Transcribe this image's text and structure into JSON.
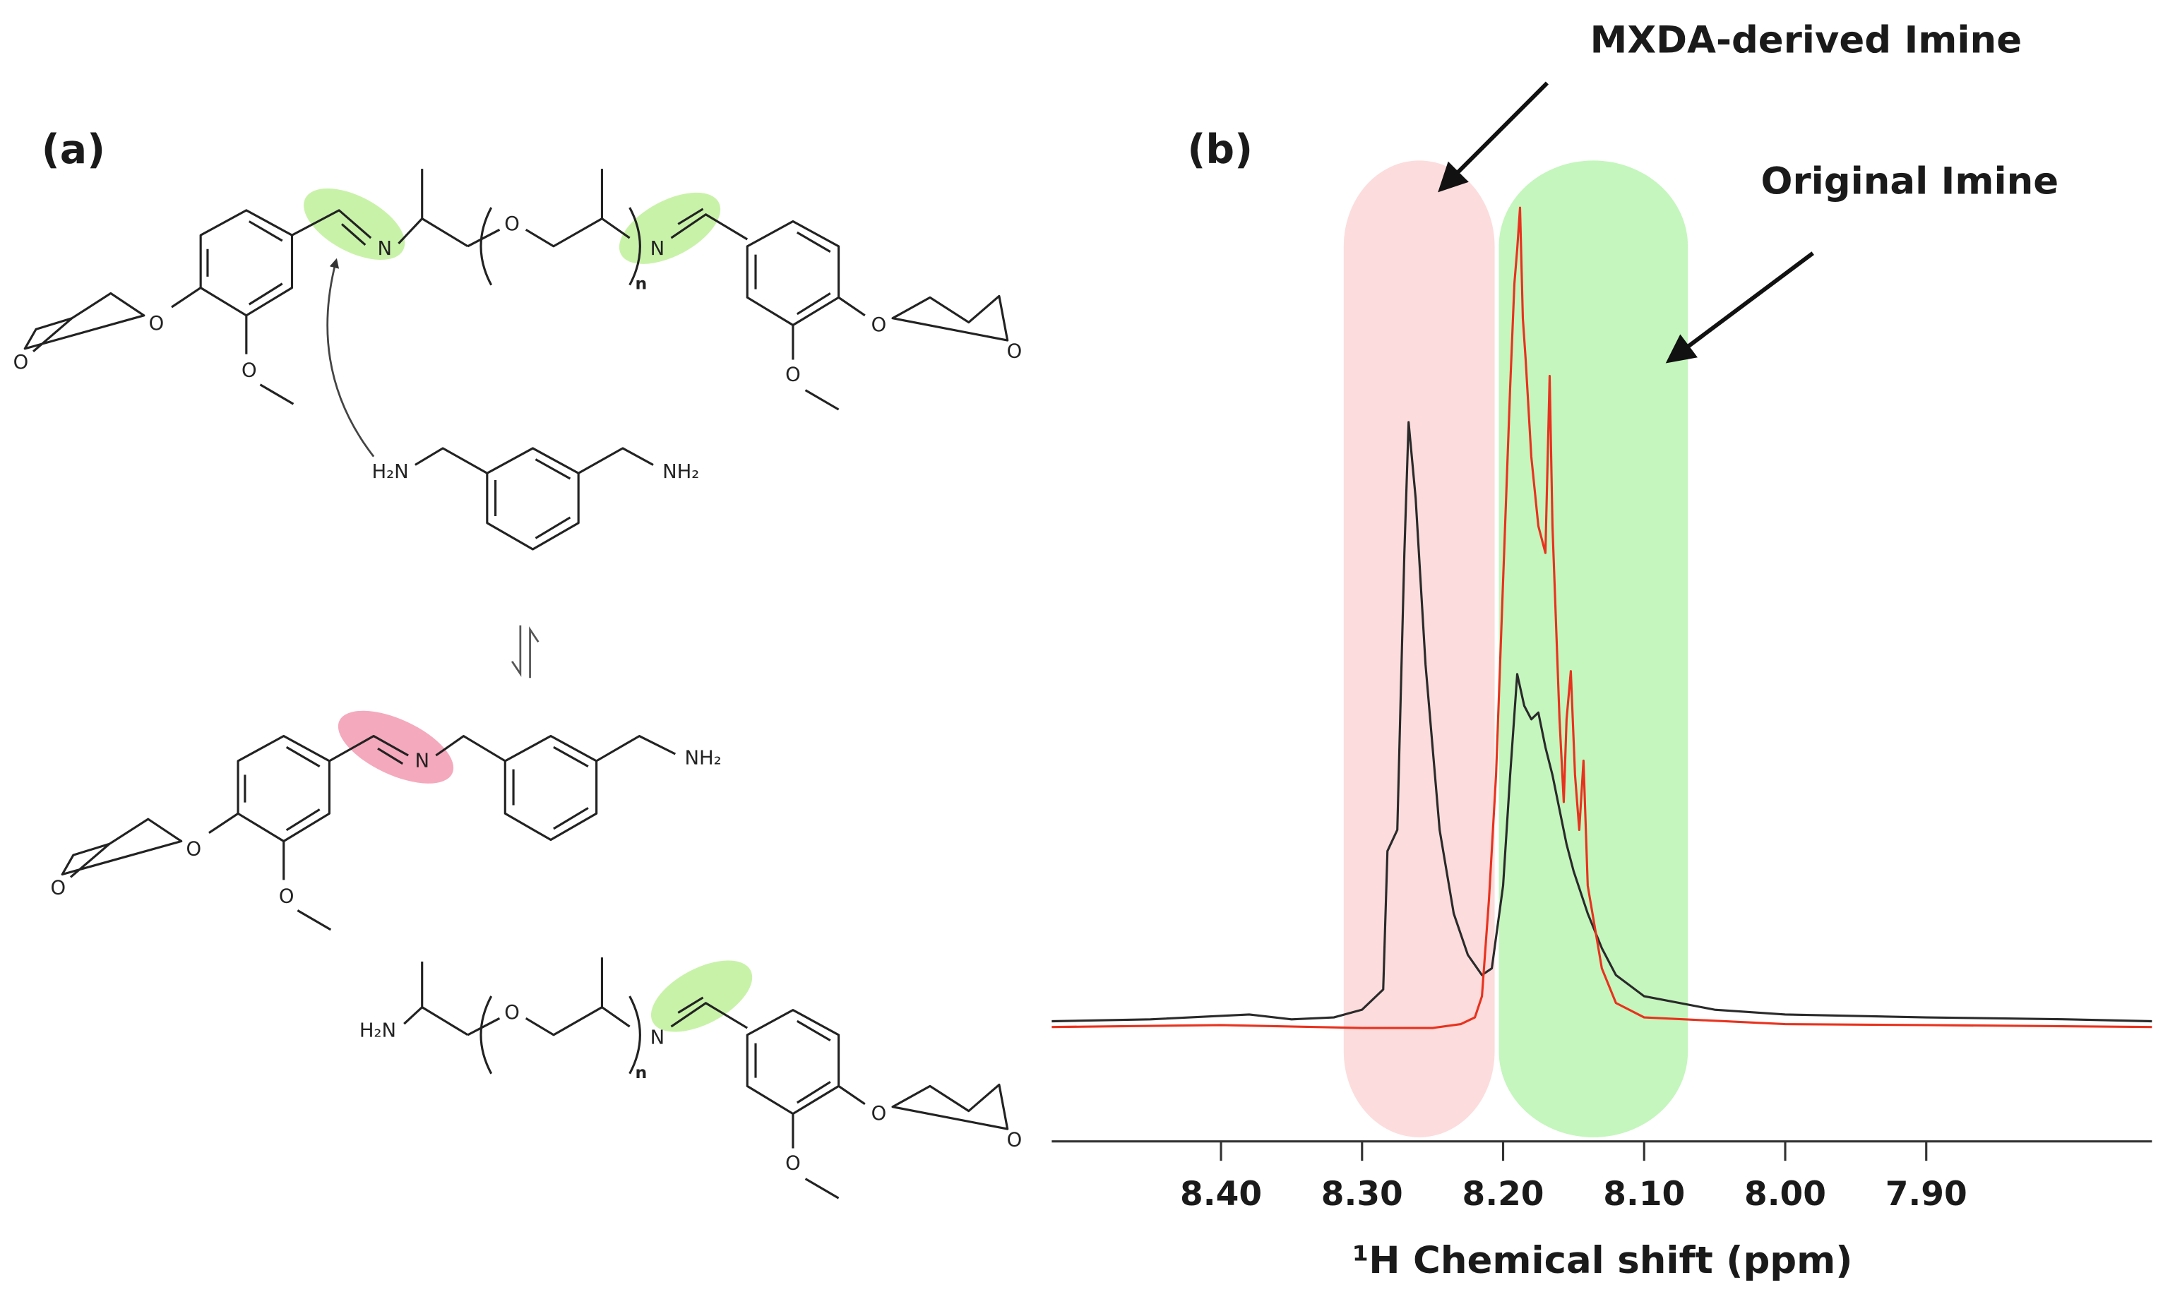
{
  "scheme": {
    "panel_label": "(a)",
    "molecules": [
      {
        "atoms": [
          "O",
          "O",
          "O",
          "N",
          "O",
          "n",
          "N",
          "O",
          "O",
          "O"
        ]
      },
      {
        "atoms": [
          "H₂N",
          "NH₂"
        ]
      },
      {
        "atoms": [
          "O",
          "O",
          "O",
          "N",
          "NH₂"
        ]
      },
      {
        "atoms": [
          "H₂N",
          "O",
          "n",
          "N",
          "O",
          "O",
          "O"
        ]
      }
    ]
  },
  "chart_data": {
    "type": "line",
    "panel_label": "(b)",
    "xlabel": "¹H Chemical shift (ppm)",
    "annotations": [
      {
        "text": "MXDA-derived Imine"
      },
      {
        "text": "Original Imine"
      }
    ],
    "highlights": [
      {
        "xlim": [
          8.313,
          8.206
        ],
        "color": "#fcdcdc"
      },
      {
        "xlim": [
          8.203,
          8.069
        ],
        "color": "#c4f6bd"
      }
    ],
    "xlim": [
      8.52,
      7.74
    ],
    "ylim": [
      0,
      100
    ],
    "xticks": [
      {
        "value": 8.4,
        "label": "8.40"
      },
      {
        "value": 8.3,
        "label": "8.30"
      },
      {
        "value": 8.2,
        "label": "8.20"
      },
      {
        "value": 8.1,
        "label": "8.10"
      },
      {
        "value": 8.0,
        "label": "8.00"
      },
      {
        "value": 7.9,
        "label": "7.90"
      }
    ],
    "series": [
      {
        "color": "#2a2a2a",
        "x": [
          8.52,
          8.45,
          8.38,
          8.35,
          8.32,
          8.3,
          8.285,
          8.282,
          8.275,
          8.27,
          8.267,
          8.262,
          8.255,
          8.245,
          8.235,
          8.225,
          8.215,
          8.208,
          8.2,
          8.195,
          8.19,
          8.185,
          8.18,
          8.175,
          8.17,
          8.165,
          8.16,
          8.155,
          8.15,
          8.14,
          8.13,
          8.12,
          8.1,
          8.05,
          8.0,
          7.9,
          7.8,
          7.74
        ],
        "values": [
          12.5,
          12.7,
          13.2,
          12.7,
          12.9,
          13.7,
          15.8,
          30.2,
          32.4,
          61.2,
          74.8,
          66.9,
          49.6,
          32.4,
          23.7,
          19.4,
          17.3,
          18.0,
          26.6,
          38.1,
          48.6,
          45.3,
          43.9,
          44.6,
          41.0,
          38.1,
          34.5,
          30.9,
          28.1,
          23.7,
          20.1,
          17.3,
          15.1,
          13.7,
          13.2,
          12.9,
          12.7,
          12.5
        ]
      },
      {
        "color": "#e8321e",
        "x": [
          8.52,
          8.4,
          8.3,
          8.25,
          8.23,
          8.22,
          8.215,
          8.21,
          8.205,
          8.2,
          8.195,
          8.192,
          8.19,
          8.188,
          8.186,
          8.184,
          8.18,
          8.175,
          8.17,
          8.167,
          8.165,
          8.16,
          8.157,
          8.155,
          8.152,
          8.149,
          8.146,
          8.143,
          8.14,
          8.13,
          8.12,
          8.1,
          8.0,
          7.9,
          7.74
        ],
        "values": [
          11.9,
          12.1,
          11.8,
          11.8,
          12.2,
          12.9,
          15.1,
          25.2,
          38.1,
          58.3,
          78.4,
          89.2,
          92.8,
          97.1,
          85.6,
          81.3,
          71.2,
          64.0,
          61.2,
          79.6,
          64.0,
          43.9,
          35.3,
          43.9,
          48.9,
          38.1,
          32.4,
          39.6,
          26.6,
          18.0,
          14.4,
          12.9,
          12.2,
          12.1,
          11.9
        ]
      }
    ]
  }
}
